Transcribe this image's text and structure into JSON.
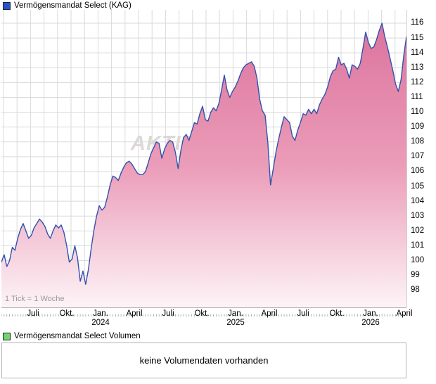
{
  "price_chart": {
    "legend_label": "Vermögensmandat Select (KAG)",
    "legend_color": "#2153d4",
    "tick_note": "1 Tick = 1 Woche",
    "watermark": "AKTIE",
    "line_color": "#3252ac",
    "fill_top_color": "#dc749f",
    "fill_mid_color": "#eb9cb8",
    "fill_bottom_color": "#fdf3f7",
    "grid_color": "#dadada",
    "tick_color": "#999999"
  },
  "chart_data": {
    "type": "area",
    "title": "Vermögensmandat Select (KAG)",
    "frequency": "1 Tick = 1 Woche (weekly)",
    "x_tick_labels": [
      "Juli",
      "Okt.",
      "Jan.\n2024",
      "April",
      "Juli",
      "Okt.",
      "Jan.\n2025",
      "April",
      "Juli",
      "Okt.",
      "Jan.\n2026",
      "April"
    ],
    "y_ticks": [
      116,
      115,
      114,
      113,
      112,
      111,
      110,
      109,
      108,
      107,
      106,
      105,
      104,
      103,
      102,
      101,
      100,
      99,
      98
    ],
    "ylim": [
      96.85,
      116.9
    ],
    "grid": true,
    "legend_position": "top-left",
    "values": [
      99.9,
      100.4,
      99.6,
      100.0,
      100.9,
      100.7,
      101.5,
      102.1,
      102.5,
      102.0,
      101.5,
      101.7,
      102.2,
      102.5,
      102.8,
      102.6,
      102.3,
      101.8,
      101.5,
      102.0,
      102.4,
      102.2,
      102.4,
      101.9,
      101.0,
      99.9,
      100.1,
      101.0,
      100.2,
      98.6,
      99.3,
      98.4,
      99.4,
      100.8,
      102.0,
      103.0,
      103.7,
      103.4,
      103.6,
      104.3,
      105.1,
      105.7,
      105.6,
      105.4,
      105.9,
      106.3,
      106.6,
      106.7,
      106.5,
      106.2,
      105.9,
      105.8,
      105.8,
      106.0,
      106.6,
      107.2,
      107.6,
      108.0,
      107.9,
      106.9,
      107.5,
      107.9,
      108.1,
      108.0,
      107.3,
      106.2,
      107.4,
      108.3,
      108.5,
      108.1,
      108.7,
      109.3,
      109.2,
      109.9,
      110.4,
      109.5,
      109.4,
      110.0,
      110.3,
      110.1,
      110.6,
      111.5,
      112.5,
      111.5,
      111.0,
      111.4,
      111.7,
      112.1,
      112.6,
      113.0,
      113.2,
      113.3,
      113.4,
      113.1,
      112.3,
      110.9,
      110.1,
      109.8,
      108.0,
      105.1,
      106.2,
      107.3,
      108.2,
      109.0,
      109.7,
      109.5,
      109.3,
      108.4,
      108.1,
      108.8,
      109.3,
      109.9,
      109.8,
      110.2,
      109.9,
      110.2,
      109.9,
      110.5,
      110.9,
      111.2,
      111.7,
      112.4,
      112.8,
      112.9,
      113.7,
      113.2,
      113.3,
      112.9,
      112.3,
      113.2,
      113.1,
      112.9,
      113.3,
      114.3,
      115.4,
      114.7,
      114.3,
      114.4,
      114.9,
      115.5,
      116.0,
      115.1,
      114.4,
      113.6,
      112.8,
      111.9,
      111.4,
      112.2,
      113.8,
      115.1
    ]
  },
  "volume_chart": {
    "legend_label": "Vermögensmandat Select Volumen",
    "legend_color": "#6fd66f",
    "empty_message": "keine Volumendaten vorhanden"
  }
}
